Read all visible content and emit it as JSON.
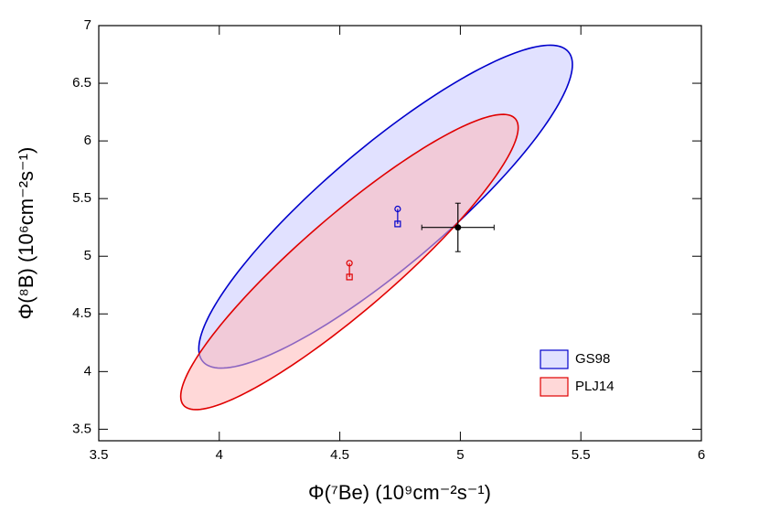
{
  "chart_data": {
    "type": "scatter",
    "x_label": "Φ(⁷Be) (10⁹cm⁻²s⁻¹)",
    "y_label": "Φ(⁸B) (10⁶cm⁻²s⁻¹)",
    "xlim": [
      3.5,
      6
    ],
    "ylim": [
      3.4,
      7
    ],
    "xticks": [
      3.5,
      4,
      4.5,
      5,
      5.5,
      6
    ],
    "yticks": [
      3.5,
      4,
      4.5,
      5,
      5.5,
      6,
      6.5,
      7
    ],
    "series": [
      {
        "name": "GS98",
        "color": "#0000cc",
        "fill": "#c8c8ff",
        "ellipse": {
          "cx": 4.69,
          "cy": 5.43,
          "sx": 0.775,
          "sy": 1.4,
          "rho": 0.88
        },
        "x": [
          4.74,
          4.74
        ],
        "y": [
          5.41,
          5.28
        ]
      },
      {
        "name": "PLJ14",
        "color": "#e00000",
        "fill": "#ffb8b8",
        "ellipse": {
          "cx": 4.54,
          "cy": 4.95,
          "sx": 0.7,
          "sy": 1.28,
          "rho": 0.91
        },
        "x": [
          4.54,
          4.54
        ],
        "y": [
          4.94,
          4.82
        ]
      }
    ],
    "measurement": {
      "x": 4.99,
      "y": 5.25,
      "xerr": 0.15,
      "yerr": 0.21,
      "color": "#000000"
    }
  }
}
